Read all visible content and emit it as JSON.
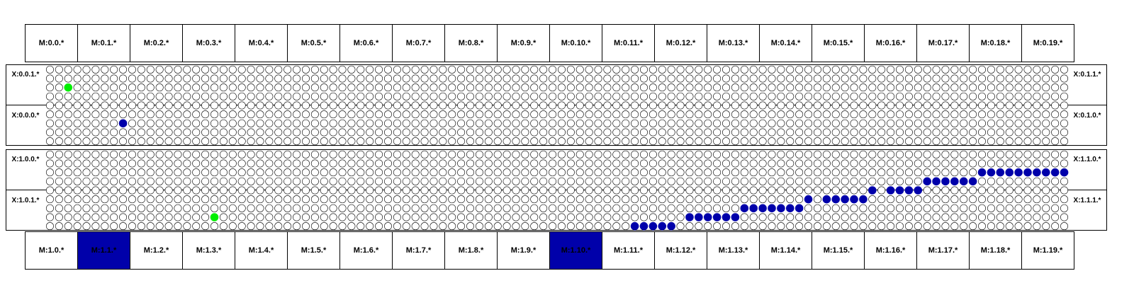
{
  "top_m_labels": [
    "M:0.0.*",
    "M:0.1.*",
    "M:0.2.*",
    "M:0.3.*",
    "M:0.4.*",
    "M:0.5.*",
    "M:0.6.*",
    "M:0.7.*",
    "M:0.8.*",
    "M:0.9.*",
    "M:0.10.*",
    "M:0.11.*",
    "M:0.12.*",
    "M:0.13.*",
    "M:0.14.*",
    "M:0.15.*",
    "M:0.16.*",
    "M:0.17.*",
    "M:0.18.*",
    "M:0.19.*"
  ],
  "bottom_m_labels": [
    "M:1.0.*",
    "M:1.1.*",
    "M:1.2.*",
    "M:1.3.*",
    "M:1.4.*",
    "M:1.5.*",
    "M:1.6.*",
    "M:1.7.*",
    "M:1.8.*",
    "M:1.9.*",
    "M:1.10.*",
    "M:1.11.*",
    "M:1.12.*",
    "M:1.13.*",
    "M:1.14.*",
    "M:1.15.*",
    "M:1.16.*",
    "M:1.17.*",
    "M:1.18.*",
    "M:1.19.*"
  ],
  "bottom_highlighted": [
    1,
    10
  ],
  "panels": [
    {
      "left": [
        "X:0.0.1.*",
        "X:0.0.0.*"
      ],
      "right": [
        "X:0.1.1.*",
        "X:0.1.0.*"
      ]
    },
    {
      "left": [
        "X:1.0.0.*",
        "X:1.0.1.*"
      ],
      "right": [
        "X:1.1.0.*",
        "X:1.1.1.*"
      ]
    }
  ],
  "grid": {
    "cols": 112,
    "rows": 9
  },
  "colors": {
    "green": "#00ee00",
    "blue": "#0000aa",
    "highlight": "#0000aa"
  },
  "markers": [
    {
      "panel": 0,
      "col": 2,
      "row": 2,
      "color": "green"
    },
    {
      "panel": 0,
      "col": 8,
      "row": 6,
      "color": "blue"
    },
    {
      "panel": 1,
      "col": 18,
      "row": 7,
      "color": "green"
    }
  ],
  "blue_runs": [
    [
      8,
      64,
      68
    ],
    [
      7,
      70,
      75
    ],
    [
      6,
      76,
      82
    ],
    [
      5,
      83,
      83
    ],
    [
      5,
      85,
      89
    ],
    [
      4,
      90,
      90
    ],
    [
      4,
      92,
      95
    ],
    [
      3,
      96,
      101
    ],
    [
      2,
      102,
      112
    ]
  ]
}
